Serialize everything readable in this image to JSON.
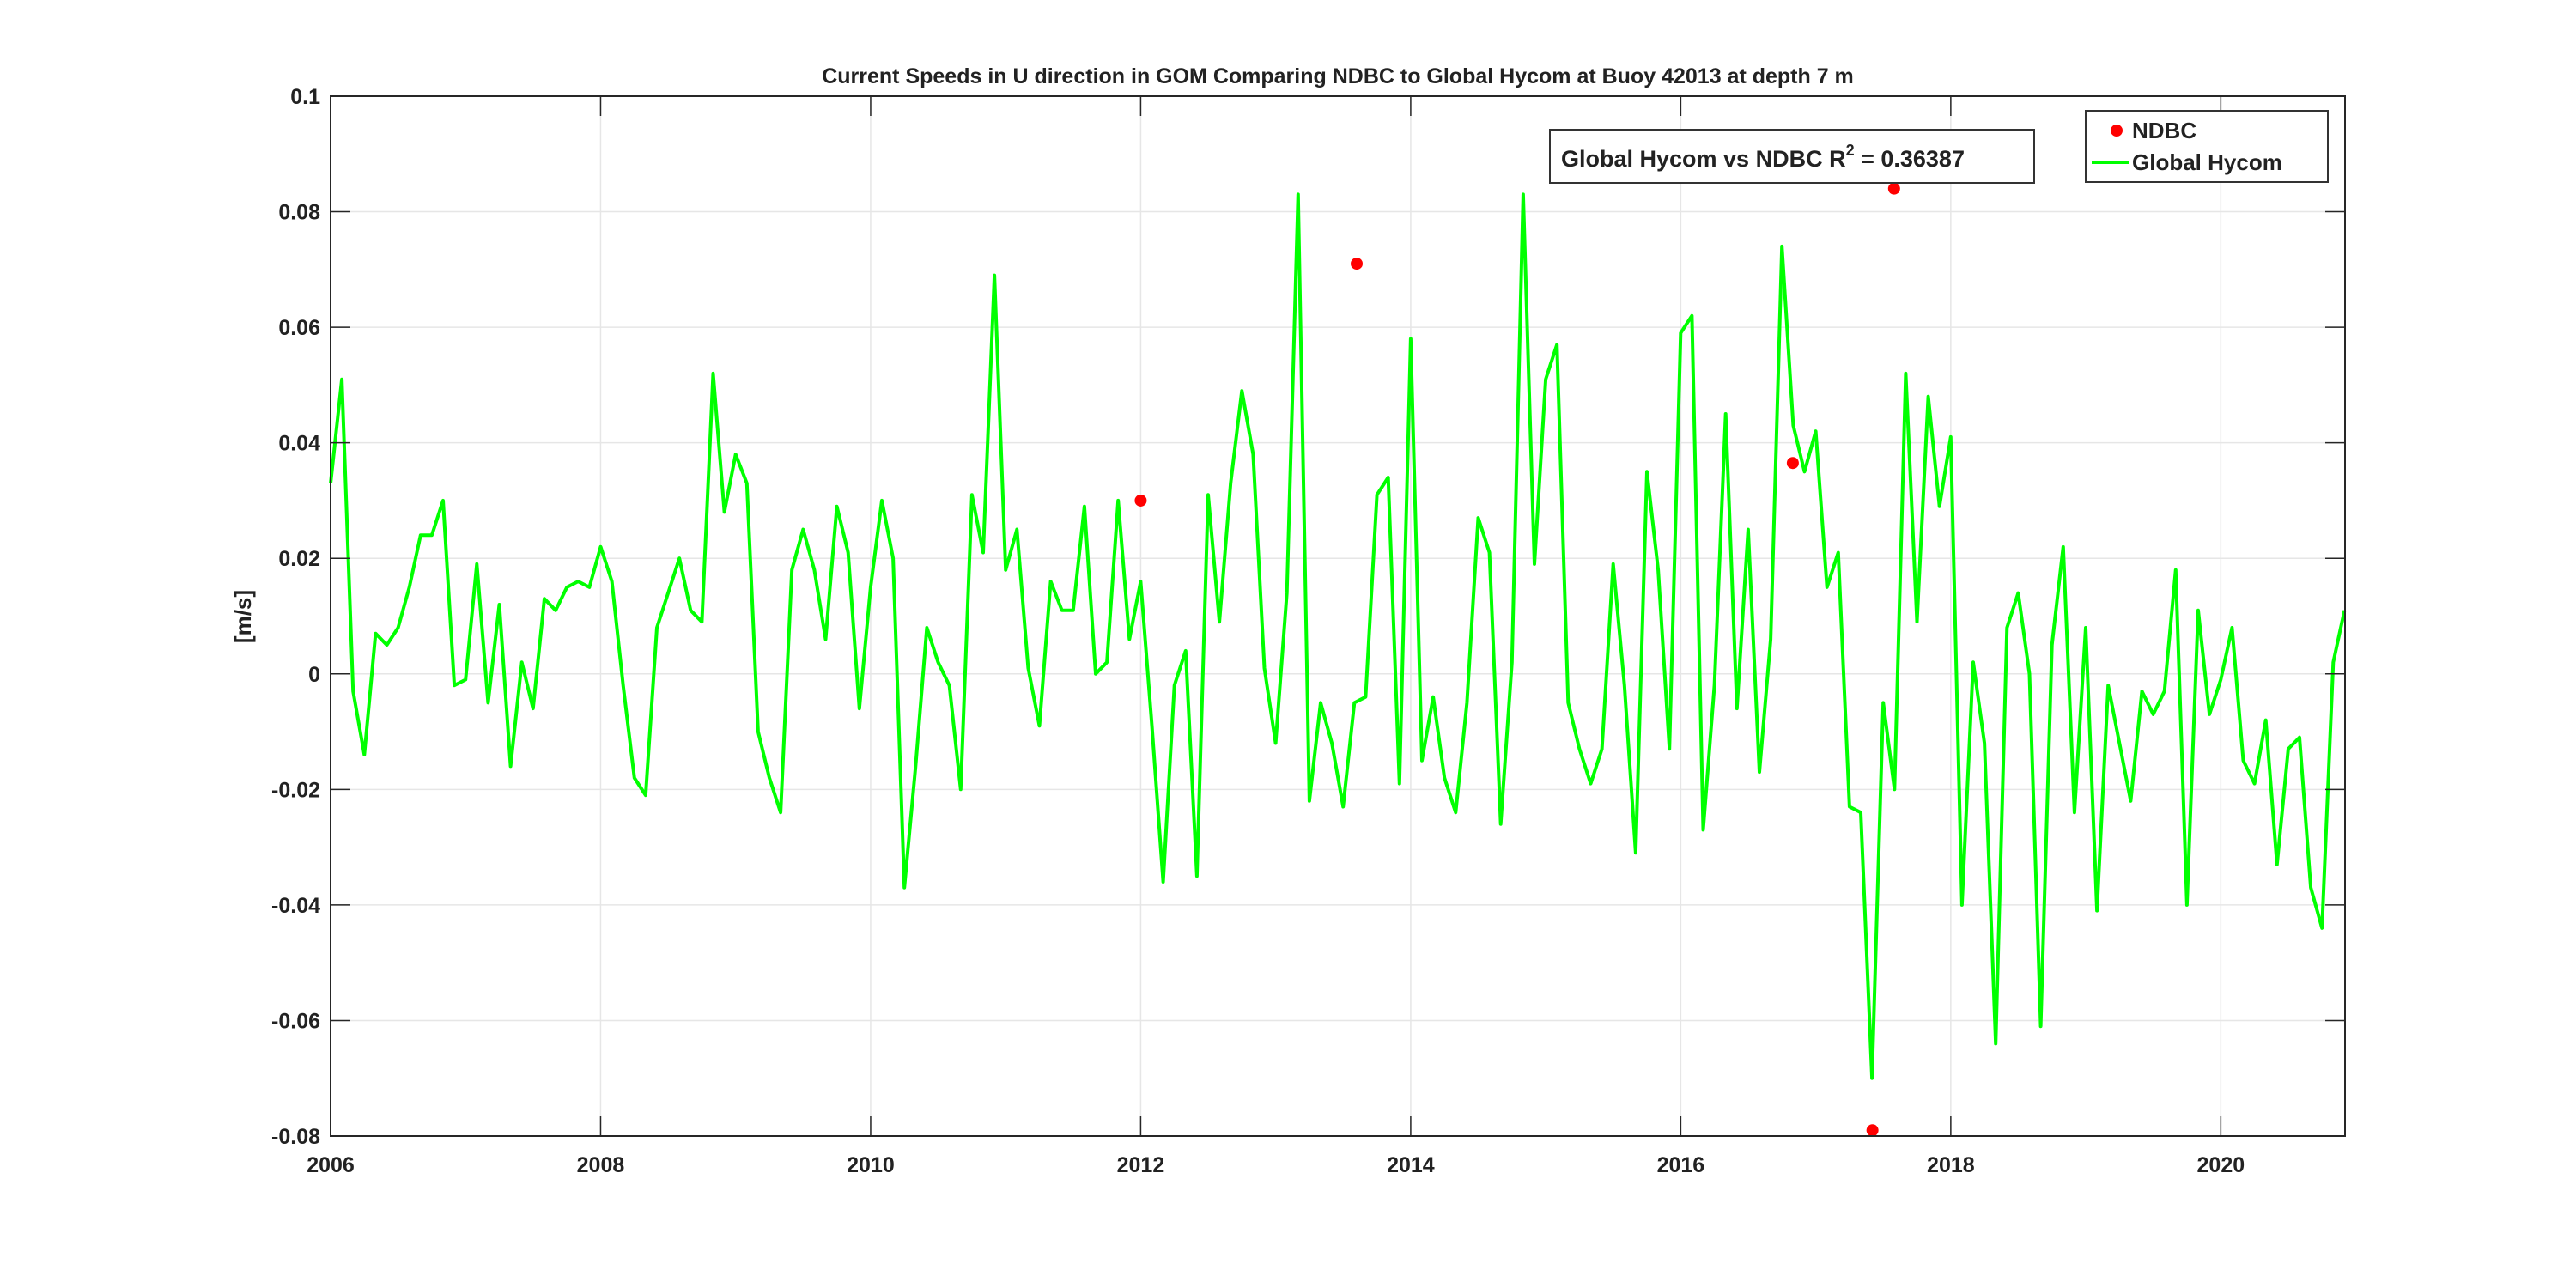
{
  "chart_data": {
    "type": "line",
    "title": "Current Speeds in U direction in GOM Comparing NDBC to Global Hycom at Buoy  42013  at depth  7 m",
    "xlabel": "",
    "ylabel": "[m/s]",
    "xlim": [
      2006,
      2020.92
    ],
    "ylim": [
      -0.08,
      0.1
    ],
    "xticks": [
      2006,
      2008,
      2010,
      2012,
      2014,
      2016,
      2018,
      2020
    ],
    "xtick_labels": [
      "2006",
      "2008",
      "2010",
      "2012",
      "2014",
      "2016",
      "2018",
      "2020"
    ],
    "yticks": [
      -0.08,
      -0.06,
      -0.04,
      -0.02,
      0,
      0.02,
      0.04,
      0.06,
      0.08,
      0.1
    ],
    "ytick_labels": [
      "-0.08",
      "-0.06",
      "-0.04",
      "-0.02",
      "0",
      "0.02",
      "0.04",
      "0.06",
      "0.08",
      "0.1"
    ],
    "grid": true,
    "legend_position": "top-right",
    "annotation": {
      "text": "Global Hycom vs NDBC R",
      "sup": "2",
      "suffix": " = 0.36387"
    },
    "series": [
      {
        "name": "NDBC",
        "style": "markers",
        "color": "#ff0000",
        "x": [
          2012.0,
          2013.6,
          2016.83,
          2017.42,
          2017.58
        ],
        "y": [
          0.03,
          0.071,
          0.0365,
          -0.079,
          0.084
        ]
      },
      {
        "name": "Global Hycom",
        "style": "line",
        "color": "#00ff00",
        "x_start": 2006.0,
        "x_step": 0.08333,
        "y": [
          0.033,
          0.051,
          -0.003,
          -0.014,
          0.007,
          0.005,
          0.008,
          0.015,
          0.024,
          0.024,
          0.03,
          -0.002,
          -0.001,
          0.019,
          -0.005,
          0.012,
          -0.016,
          0.002,
          -0.006,
          0.013,
          0.011,
          0.015,
          0.016,
          0.015,
          0.022,
          0.016,
          -0.002,
          -0.018,
          -0.021,
          0.008,
          0.014,
          0.02,
          0.011,
          0.009,
          0.052,
          0.028,
          0.038,
          0.033,
          -0.01,
          -0.018,
          -0.024,
          0.018,
          0.025,
          0.018,
          0.006,
          0.029,
          0.021,
          -0.006,
          0.015,
          0.03,
          0.02,
          -0.037,
          -0.016,
          0.008,
          0.002,
          -0.002,
          -0.02,
          0.031,
          0.021,
          0.069,
          0.018,
          0.025,
          0.001,
          -0.009,
          0.016,
          0.011,
          0.011,
          0.029,
          0.0,
          0.002,
          0.03,
          0.006,
          0.016,
          -0.009,
          -0.036,
          -0.002,
          0.004,
          -0.035,
          0.031,
          0.009,
          0.033,
          0.049,
          0.038,
          0.001,
          -0.012,
          0.014,
          0.083,
          -0.022,
          -0.005,
          -0.012,
          -0.023,
          -0.005,
          -0.004,
          0.031,
          0.034,
          -0.019,
          0.058,
          -0.015,
          -0.004,
          -0.018,
          -0.024,
          -0.005,
          0.027,
          0.021,
          -0.026,
          0.002,
          0.083,
          0.019,
          0.051,
          0.057,
          -0.005,
          -0.013,
          -0.019,
          -0.013,
          0.019,
          -0.002,
          -0.031,
          0.035,
          0.018,
          -0.013,
          0.059,
          0.062,
          -0.027,
          -0.002,
          0.045,
          -0.006,
          0.025,
          -0.017,
          0.006,
          0.074,
          0.043,
          0.035,
          0.042,
          0.015,
          0.021,
          -0.023,
          -0.024,
          -0.07,
          -0.005,
          -0.02,
          0.052,
          0.009,
          0.048,
          0.029,
          0.041,
          -0.04,
          0.002,
          -0.012,
          -0.064,
          0.008,
          0.014,
          0.0,
          -0.061,
          0.005,
          0.022,
          -0.024,
          0.008,
          -0.041,
          -0.002,
          -0.012,
          -0.022,
          -0.003,
          -0.007,
          -0.003,
          0.018,
          -0.04,
          0.011,
          -0.007,
          -0.001,
          0.008,
          -0.015,
          -0.019,
          -0.008,
          -0.033,
          -0.013,
          -0.011,
          -0.037,
          -0.044,
          0.002,
          0.011
        ]
      }
    ]
  }
}
